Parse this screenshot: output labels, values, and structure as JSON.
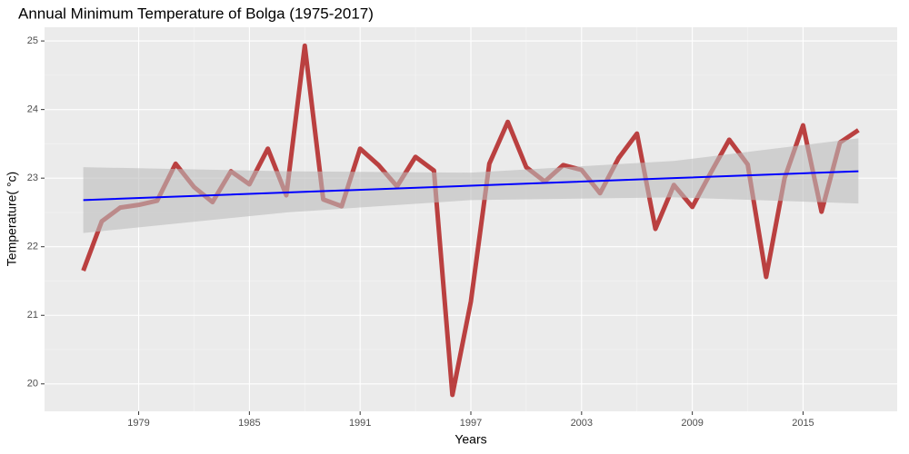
{
  "chart_data": {
    "type": "line",
    "title": "Annual Minimum Temperature  of Bolga (1975-2017)",
    "x_label": "Years",
    "y_label": "Temperature( °c)",
    "x": [
      1976,
      1977,
      1978,
      1979,
      1980,
      1981,
      1982,
      1983,
      1984,
      1985,
      1986,
      1987,
      1988,
      1989,
      1990,
      1991,
      1992,
      1993,
      1994,
      1995,
      1996,
      1997,
      1998,
      1999,
      2000,
      2001,
      2002,
      2003,
      2004,
      2005,
      2006,
      2007,
      2008,
      2009,
      2010,
      2011,
      2012,
      2013,
      2014,
      2015,
      2016,
      2017,
      2018
    ],
    "series": [
      {
        "color": "#b22222",
        "values": [
          21.65,
          22.37,
          22.57,
          22.61,
          22.67,
          23.21,
          22.87,
          22.65,
          23.1,
          22.91,
          23.43,
          22.75,
          24.93,
          22.69,
          22.59,
          23.43,
          23.19,
          22.88,
          23.31,
          23.11,
          19.84,
          21.2,
          23.21,
          23.82,
          23.16,
          22.95,
          23.19,
          23.12,
          22.78,
          23.29,
          23.65,
          22.26,
          22.9,
          22.58,
          23.08,
          23.56,
          23.2,
          21.56,
          23.0,
          23.77,
          22.51,
          23.52,
          23.7
        ]
      }
    ],
    "fit": {
      "color": "#0000ff",
      "band_color": "#bdbdbd",
      "x": [
        1976,
        1987,
        1997,
        2008,
        2018
      ],
      "values": [
        22.68,
        22.79,
        22.89,
        23.0,
        23.1
      ],
      "lower": [
        22.2,
        22.5,
        22.68,
        22.72,
        22.63
      ],
      "upper": [
        23.16,
        23.1,
        23.08,
        23.25,
        23.58
      ]
    },
    "xlim": [
      1973.9,
      2020.1
    ],
    "ylim": [
      19.6,
      25.2
    ],
    "xticks": [
      1979,
      1985,
      1991,
      1997,
      2003,
      2009,
      2015
    ],
    "yticks": [
      20,
      21,
      22,
      23,
      24,
      25
    ],
    "grid": true
  }
}
